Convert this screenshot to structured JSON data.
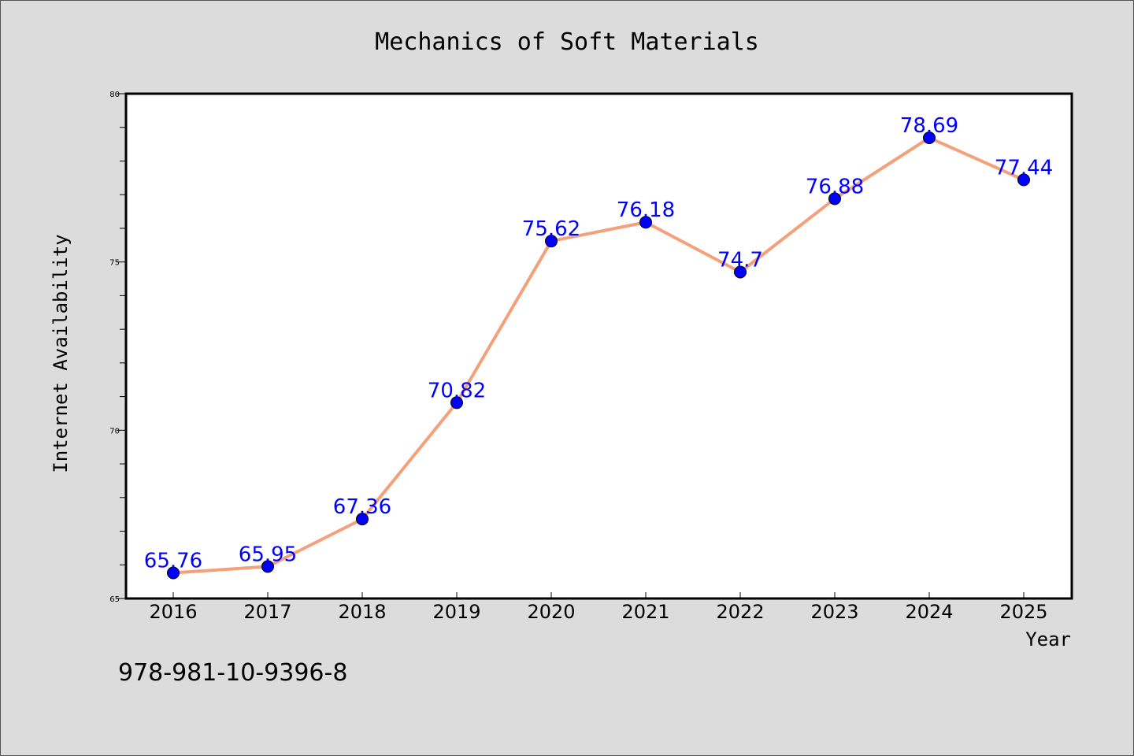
{
  "chart_data": {
    "type": "line",
    "title": "Mechanics of Soft Materials",
    "xlabel": "Year",
    "ylabel": "Internet Availability",
    "categories": [
      "2016",
      "2017",
      "2018",
      "2019",
      "2020",
      "2021",
      "2022",
      "2023",
      "2024",
      "2025"
    ],
    "series": [
      {
        "values": [
          65.76,
          65.95,
          67.36,
          70.82,
          75.62,
          76.18,
          74.7,
          76.88,
          78.69,
          77.44
        ],
        "labels": [
          "65.76",
          "65.95",
          "67.36",
          "70.82",
          "75.62",
          "76.18",
          "74.7",
          "76.88",
          "78.69",
          "77.44"
        ],
        "line_color": "#f4a07a",
        "marker_color": "#0000ff",
        "label_color": "#0000ff"
      }
    ],
    "ylim": [
      65,
      80
    ],
    "y_major_ticks": [
      "65",
      "70",
      "75",
      "80"
    ],
    "y_minor_step": 1,
    "grid": false,
    "legend": "none",
    "background": "#dcdcdc",
    "plot_background": "#ffffff"
  },
  "annotation": {
    "isbn": "978-981-10-9396-8"
  }
}
